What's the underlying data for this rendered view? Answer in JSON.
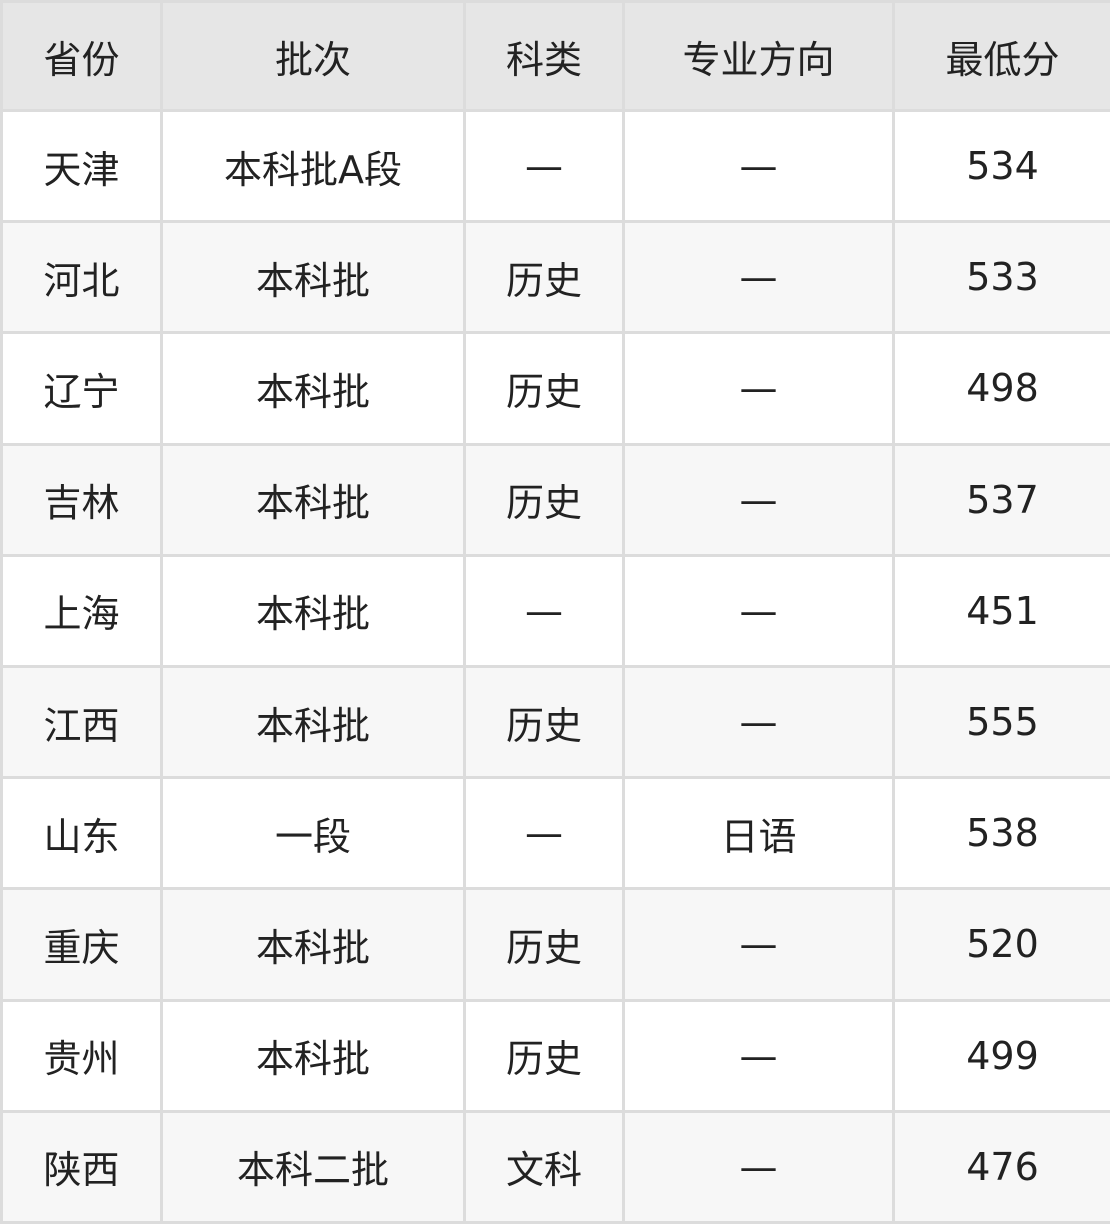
{
  "headers": [
    "省份",
    "批次",
    "科类",
    "专业方向",
    "最低分"
  ],
  "rows": [
    [
      "天津",
      "本科批A段",
      "—",
      "—",
      "534"
    ],
    [
      "河北",
      "本科批",
      "历史",
      "—",
      "533"
    ],
    [
      "辽宁",
      "本科批",
      "历史",
      "—",
      "498"
    ],
    [
      "吉林",
      "本科批",
      "历史",
      "—",
      "537"
    ],
    [
      "上海",
      "本科批",
      "—",
      "—",
      "451"
    ],
    [
      "江西",
      "本科批",
      "历史",
      "—",
      "555"
    ],
    [
      "山东",
      "一段",
      "—",
      "日语",
      "538"
    ],
    [
      "重庆",
      "本科批",
      "历史",
      "—",
      "520"
    ],
    [
      "贵州",
      "本科批",
      "历史",
      "—",
      "499"
    ],
    [
      "陕西",
      "本科二批",
      "文科",
      "—",
      "476"
    ]
  ]
}
